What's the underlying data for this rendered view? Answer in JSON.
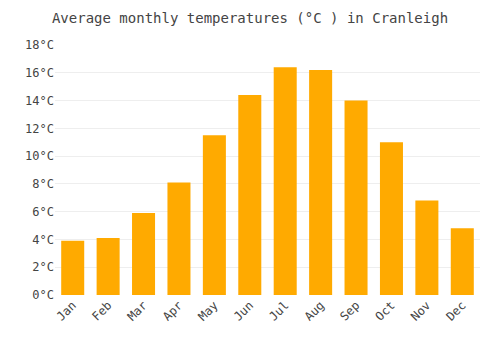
{
  "chart_data": {
    "type": "bar",
    "title": "Average monthly temperatures (°C ) in Cranleigh",
    "categories": [
      "Jan",
      "Feb",
      "Mar",
      "Apr",
      "May",
      "Jun",
      "Jul",
      "Aug",
      "Sep",
      "Oct",
      "Nov",
      "Dec"
    ],
    "values": [
      3.9,
      4.1,
      5.9,
      8.1,
      11.5,
      14.4,
      16.4,
      16.2,
      14.0,
      11.0,
      6.8,
      4.8
    ],
    "color": "#FFAA00",
    "ylim": [
      0,
      18
    ],
    "yticks": [
      {
        "value": 0,
        "label": "0°C"
      },
      {
        "value": 2,
        "label": "2°C"
      },
      {
        "value": 4,
        "label": "4°C"
      },
      {
        "value": 6,
        "label": "6°C"
      },
      {
        "value": 8,
        "label": "8°C"
      },
      {
        "value": 10,
        "label": "10°C"
      },
      {
        "value": 12,
        "label": "12°C"
      },
      {
        "value": 14,
        "label": "14°C"
      },
      {
        "value": 16,
        "label": "16°C"
      },
      {
        "value": 18,
        "label": "18°C"
      }
    ],
    "grid": true
  }
}
